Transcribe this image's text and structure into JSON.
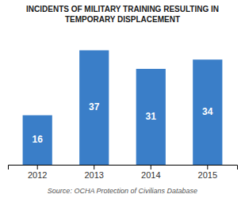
{
  "chart_data": {
    "type": "bar",
    "title": "INCIDENTS OF MILITARY TRAINING RESULTING IN\nTEMPORARY DISPLACEMENT",
    "categories": [
      "2012",
      "2013",
      "2014",
      "2015"
    ],
    "values": [
      16,
      37,
      31,
      34
    ],
    "color": "#3a7ec8",
    "ylim": [
      0,
      42
    ],
    "grid": false,
    "data_labels": true,
    "tick_labels": "x",
    "annotations": [
      "Source: OCHA Protection of Civilians Database"
    ]
  }
}
